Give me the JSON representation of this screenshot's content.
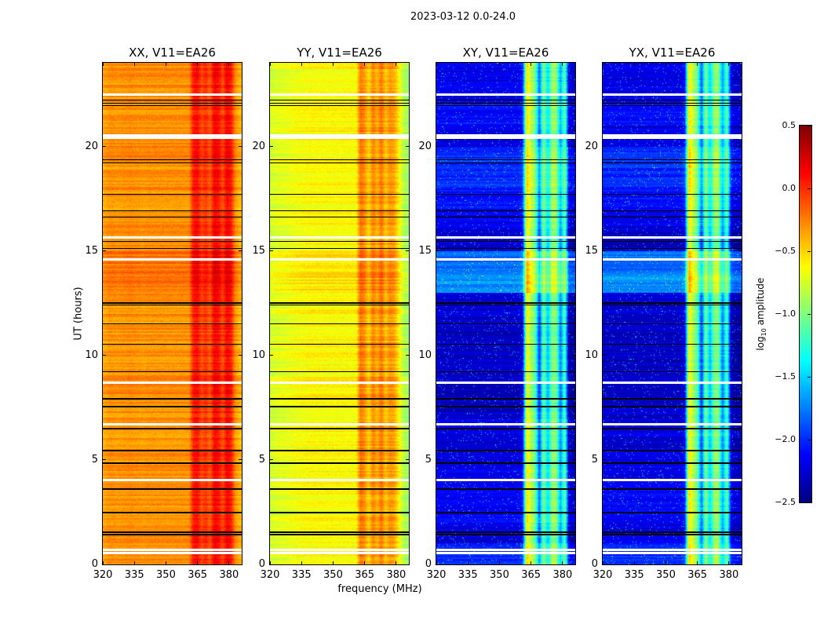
{
  "chart_data": {
    "type": "heatmap",
    "title": "2023-03-12 0.0-24.0",
    "xlabel": "frequency (MHz)",
    "ylabel": "UT (hours)",
    "xlim": [
      320,
      386
    ],
    "ylim": [
      0,
      24
    ],
    "xticks": [
      "320",
      "335",
      "350",
      "365",
      "380"
    ],
    "xtick_values": [
      320,
      335,
      350,
      365,
      380
    ],
    "yticks": [
      "0",
      "5",
      "10",
      "15",
      "20"
    ],
    "ytick_values": [
      0,
      5,
      10,
      15,
      20
    ],
    "colorbar": {
      "label_main": "log",
      "label_sub": "10",
      "label_rest": " amplitude",
      "vmin": -2.5,
      "vmax": 0.5,
      "colormap": "jet",
      "ticks": [
        "−2.5",
        "−2.0",
        "−1.5",
        "−1.0",
        "−0.5",
        "0.0",
        "0.5"
      ],
      "tick_values": [
        -2.5,
        -2.0,
        -1.5,
        -1.0,
        -0.5,
        0.0,
        0.5
      ]
    },
    "freq_bin_start_mhz": 320,
    "freq_bin_step_mhz": 2,
    "flagged_times_hours": [
      22.48,
      20.53,
      20.41,
      15.65,
      14.6,
      8.71,
      6.72,
      4.05,
      0.71,
      0.53
    ],
    "scan_boundaries_hours": [
      22.21,
      22.06,
      21.95,
      19.36,
      19.21,
      17.71,
      16.92,
      16.62,
      15.46,
      15.12,
      12.5,
      12.42,
      11.52,
      10.54,
      9.23,
      7.92,
      7.54,
      6.49,
      5.44,
      4.84,
      3.6,
      2.48,
      1.54,
      1.43
    ],
    "panels": [
      {
        "title": "XX, V11=EA26",
        "freq_profile_log10": [
          -0.35,
          -0.3,
          -0.3,
          -0.32,
          -0.3,
          -0.3,
          -0.28,
          -0.3,
          -0.3,
          -0.32,
          -0.3,
          -0.3,
          -0.3,
          -0.3,
          -0.3,
          -0.3,
          -0.3,
          -0.3,
          -0.3,
          -0.3,
          -0.3,
          0.05,
          0.1,
          -0.1,
          0.0,
          -0.15,
          0.15,
          0.1,
          -0.1,
          0.15,
          0.05,
          -0.3,
          -0.4
        ],
        "hourly_offset": [
          0,
          0,
          0,
          0,
          0,
          0,
          0,
          0,
          0.05,
          0,
          0,
          0,
          0,
          0.2,
          0.2,
          0,
          0,
          0,
          0,
          0.05,
          0.05,
          0,
          0,
          0
        ]
      },
      {
        "title": "YY, V11=EA26",
        "freq_profile_log10": [
          -0.75,
          -0.72,
          -0.7,
          -0.7,
          -0.68,
          -0.66,
          -0.65,
          -0.64,
          -0.63,
          -0.62,
          -0.62,
          -0.62,
          -0.62,
          -0.62,
          -0.62,
          -0.62,
          -0.62,
          -0.62,
          -0.62,
          -0.62,
          -0.62,
          -0.2,
          -0.3,
          -0.5,
          -0.25,
          -0.4,
          -0.2,
          -0.45,
          -0.3,
          -0.35,
          -0.55,
          -0.8,
          -0.9
        ],
        "hourly_offset": [
          0,
          0,
          0,
          0,
          0,
          0,
          0,
          0,
          0.05,
          0,
          0,
          0,
          0,
          0.15,
          0.15,
          0,
          0,
          0,
          0,
          0,
          0.05,
          0,
          0,
          0
        ]
      },
      {
        "title": "XY, V11=EA26",
        "freq_profile_log10": [
          -2.3,
          -2.3,
          -2.3,
          -2.3,
          -2.3,
          -2.3,
          -2.3,
          -2.3,
          -2.3,
          -2.3,
          -2.3,
          -2.3,
          -2.3,
          -2.3,
          -2.3,
          -2.3,
          -2.3,
          -2.3,
          -2.3,
          -2.3,
          -2.2,
          -0.6,
          -0.9,
          -1.1,
          -2.0,
          -1.0,
          -1.6,
          -1.0,
          -1.0,
          -1.8,
          -1.1,
          -2.4,
          -2.4
        ],
        "hourly_offset": [
          0.3,
          0.1,
          0.15,
          0.15,
          0.1,
          0.05,
          0.1,
          0,
          0,
          0,
          0,
          0,
          0.05,
          0.6,
          0.5,
          0,
          0.1,
          0.2,
          0.3,
          0.3,
          0.1,
          0.2,
          0.1,
          0.1
        ]
      },
      {
        "title": "YX, V11=EA26",
        "freq_profile_log10": [
          -2.3,
          -2.3,
          -2.3,
          -2.3,
          -2.3,
          -2.3,
          -2.3,
          -2.3,
          -2.3,
          -2.3,
          -2.3,
          -2.3,
          -2.3,
          -2.3,
          -2.3,
          -2.3,
          -2.3,
          -2.3,
          -2.3,
          -2.2,
          -0.6,
          -0.9,
          -1.1,
          -2.0,
          -1.0,
          -1.6,
          -1.0,
          -1.0,
          -1.8,
          -1.1,
          -2.3,
          -2.4,
          -2.4
        ],
        "hourly_offset": [
          0.3,
          0.1,
          0.15,
          0.15,
          0.1,
          0.05,
          0.1,
          0,
          0,
          0,
          0,
          0,
          0.05,
          0.6,
          0.5,
          0,
          0.1,
          0.2,
          0.3,
          0.3,
          0.1,
          0.2,
          0.1,
          0.1
        ]
      }
    ]
  }
}
